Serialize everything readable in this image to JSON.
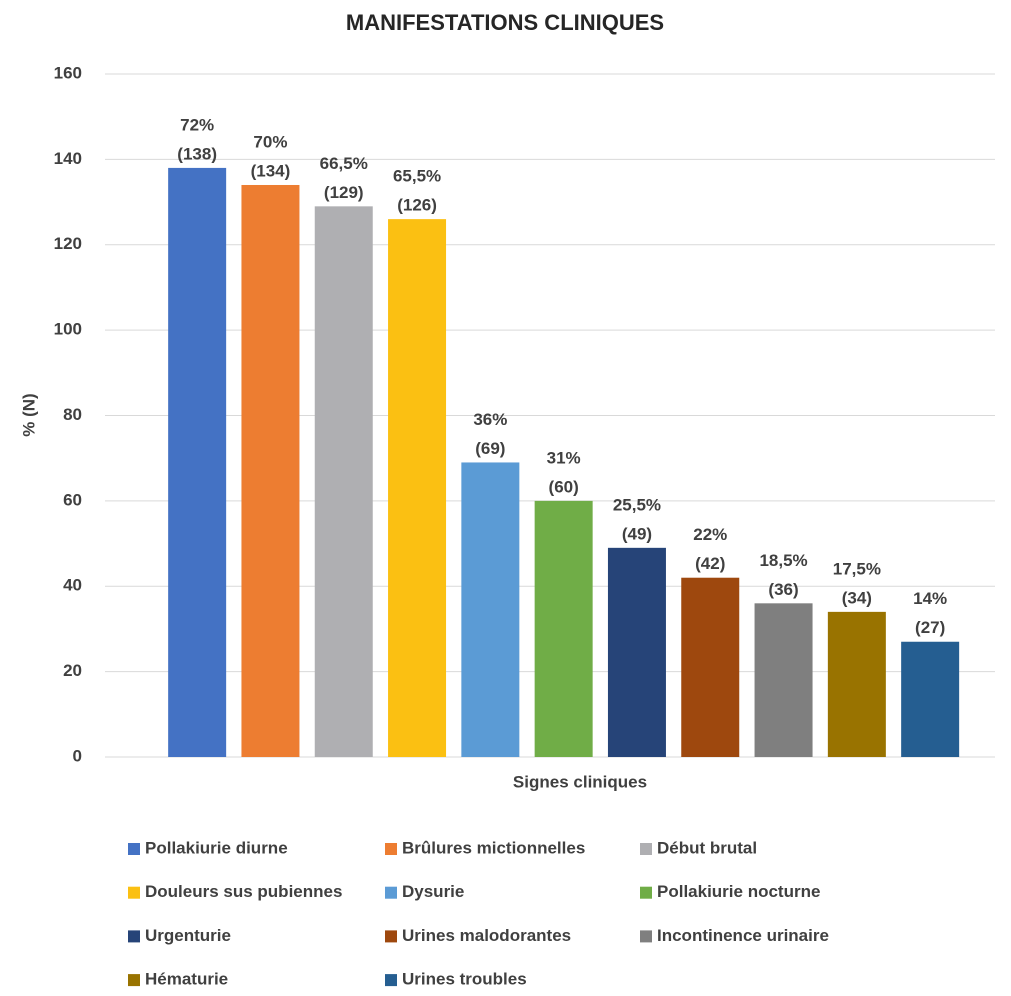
{
  "chart_data": {
    "type": "bar",
    "title": "MANIFESTATIONS CLINIQUES",
    "x_label": "Signes cliniques",
    "y_label": "% (N)",
    "ylim": [
      0,
      160
    ],
    "yticks": [
      0,
      20,
      40,
      60,
      80,
      100,
      120,
      140,
      160
    ],
    "grid": true,
    "legend": "bottom",
    "series": [
      {
        "name": "Pollakiurie diurne",
        "color": "#4472c4",
        "values": [
          138
        ],
        "value_labels": [
          [
            "72%",
            "(138)"
          ]
        ]
      },
      {
        "name": "Brûlures mictionnelles",
        "color": "#ed7d31",
        "values": [
          134
        ],
        "value_labels": [
          [
            "70%",
            "(134)"
          ]
        ]
      },
      {
        "name": "Début brutal",
        "color": "#afafb2",
        "values": [
          129
        ],
        "value_labels": [
          [
            "66,5%",
            "(129)"
          ]
        ]
      },
      {
        "name": "Douleurs sus pubiennes",
        "color": "#fbc012",
        "values": [
          126
        ],
        "value_labels": [
          [
            "65,5%",
            "(126)"
          ]
        ]
      },
      {
        "name": "Dysurie",
        "color": "#5b9bd5",
        "values": [
          69
        ],
        "value_labels": [
          [
            "36%",
            "(69)"
          ]
        ]
      },
      {
        "name": "Pollakiurie nocturne",
        "color": "#70ad47",
        "values": [
          60
        ],
        "value_labels": [
          [
            "31%",
            "(60)"
          ]
        ]
      },
      {
        "name": "Urgenturie",
        "color": "#264478",
        "values": [
          49
        ],
        "value_labels": [
          [
            "25,5%",
            "(49)"
          ]
        ]
      },
      {
        "name": "Urines malodorantes",
        "color": "#9e480e",
        "values": [
          42
        ],
        "value_labels": [
          [
            "22%",
            "(42)"
          ]
        ]
      },
      {
        "name": "Incontinence urinaire",
        "color": "#7f7f7f",
        "values": [
          36
        ],
        "value_labels": [
          [
            "18,5%",
            "(36)"
          ]
        ]
      },
      {
        "name": "Hématurie",
        "color": "#997300",
        "values": [
          34
        ],
        "value_labels": [
          [
            "17,5%",
            "(34)"
          ]
        ]
      },
      {
        "name": "Urines troubles",
        "color": "#255e91",
        "values": [
          27
        ],
        "value_labels": [
          [
            "14%",
            "(27)"
          ]
        ]
      }
    ]
  }
}
